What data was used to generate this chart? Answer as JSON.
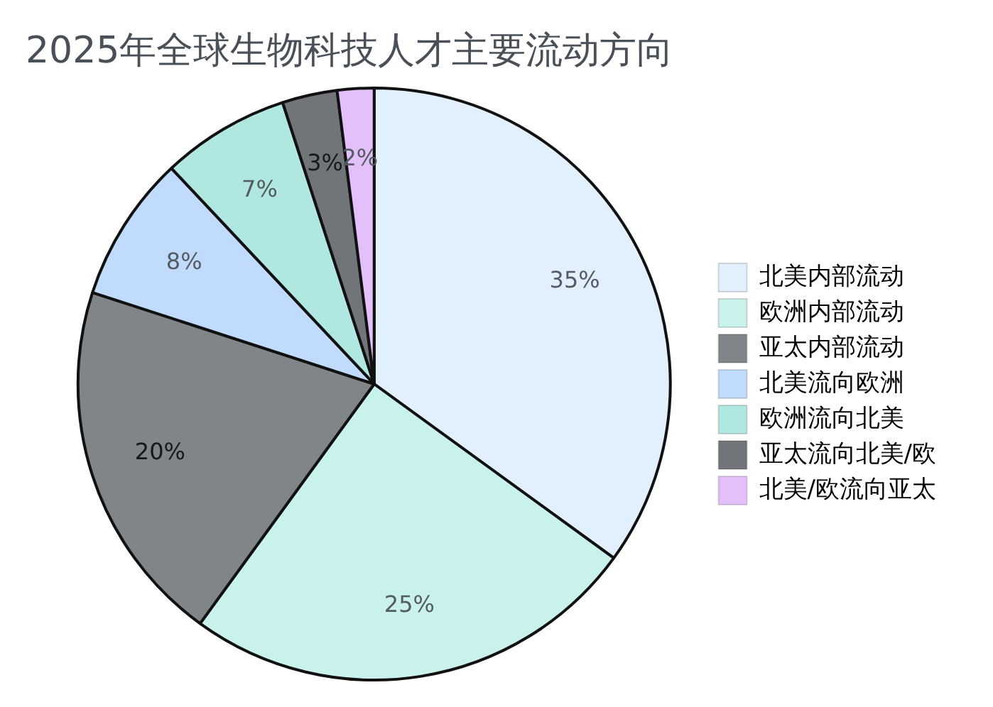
{
  "chart_data": {
    "type": "pie",
    "title": "2025年全球生物科技人才主要流动方向",
    "categories": [
      "北美内部流动",
      "欧洲内部流动",
      "亚太内部流动",
      "北美流向欧洲",
      "欧洲流向北美",
      "亚太流向北美/欧",
      "北美/欧流向亚太"
    ],
    "values": [
      35,
      25,
      20,
      8,
      7,
      3,
      2
    ],
    "colors": [
      "#e2effd",
      "#caf2ed",
      "#808589",
      "#c1dbfc",
      "#b1e7e1",
      "#717579",
      "#e3c0fa"
    ],
    "value_labels": [
      "35%",
      "25%",
      "20%",
      "8%",
      "7%",
      "3%",
      "2%"
    ],
    "legend": "right"
  }
}
